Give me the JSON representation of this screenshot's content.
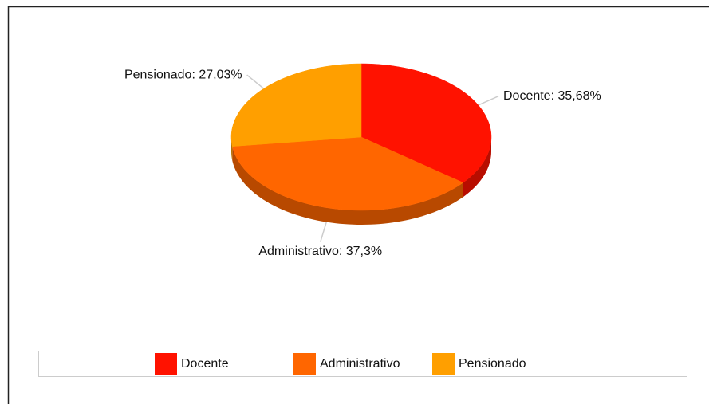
{
  "chart_data": {
    "type": "pie3d",
    "categories": [
      "Docente",
      "Administrativo",
      "Pensionado"
    ],
    "values": [
      35.68,
      37.3,
      27.03
    ],
    "value_labels": [
      "Docente: 35,68%",
      "Administrativo: 37,3%",
      "Pensionado: 27,03%"
    ],
    "colors": [
      "#ff1200",
      "#ff6600",
      "#ff9f00"
    ],
    "legend": "bottom"
  }
}
